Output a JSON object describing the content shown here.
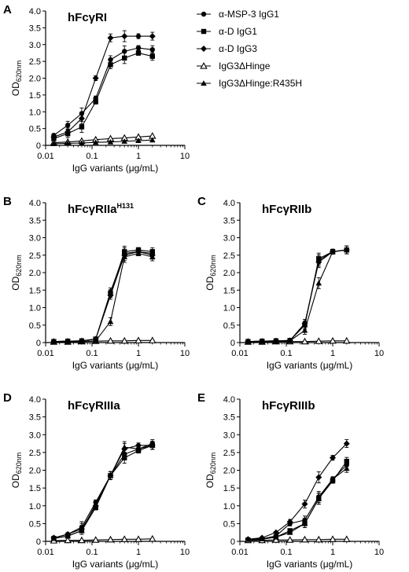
{
  "chart_data": [
    {
      "type": "line",
      "panel_letter": "A",
      "title": "hFcγRI",
      "title_sup": "",
      "xlabel": "IgG variants (μg/mL)",
      "ylabel_main": "OD",
      "ylabel_sub": "620nm",
      "x_scale": "log",
      "xlim": [
        0.01,
        10
      ],
      "ylim": [
        0,
        4.0
      ],
      "x_ticks": [
        "0.01",
        "0.1",
        "1",
        "10"
      ],
      "y_ticks": [
        "0",
        "0.5",
        "1.0",
        "1.5",
        "2.0",
        "2.5",
        "3.0",
        "3.5",
        "4.0"
      ],
      "x": [
        0.015,
        0.03,
        0.06,
        0.12,
        0.25,
        0.5,
        1,
        2
      ],
      "series": [
        {
          "name": "α-MSP-3 IgG1",
          "marker": "circle",
          "values": [
            0.3,
            0.6,
            0.95,
            1.4,
            2.55,
            2.8,
            2.9,
            2.85
          ]
        },
        {
          "name": "α-D IgG1",
          "marker": "square",
          "values": [
            0.2,
            0.35,
            0.55,
            1.3,
            2.4,
            2.6,
            2.75,
            2.65
          ]
        },
        {
          "name": "α-D IgG3",
          "marker": "diamond",
          "values": [
            0.25,
            0.4,
            0.8,
            2.0,
            3.2,
            3.25,
            3.25,
            3.25
          ]
        },
        {
          "name": "IgG3ΔHinge",
          "marker": "triangle-open",
          "values": [
            0.08,
            0.1,
            0.13,
            0.17,
            0.2,
            0.22,
            0.25,
            0.28
          ]
        },
        {
          "name": "IgG3ΔHinge:R435H",
          "marker": "triangle",
          "values": [
            0.05,
            0.06,
            0.07,
            0.09,
            0.1,
            0.12,
            0.14,
            0.16
          ]
        }
      ],
      "legend": "right"
    },
    {
      "type": "line",
      "panel_letter": "B",
      "title": "hFcγRIIa",
      "title_sup": "H131",
      "xlabel": "IgG variants (μg/mL)",
      "ylabel_main": "OD",
      "ylabel_sub": "620nm",
      "x_scale": "log",
      "xlim": [
        0.01,
        10
      ],
      "ylim": [
        0,
        4.0
      ],
      "x_ticks": [
        "0.01",
        "0.1",
        "1",
        "10"
      ],
      "y_ticks": [
        "0",
        "0.5",
        "1.0",
        "1.5",
        "2.0",
        "2.5",
        "3.0",
        "3.5",
        "4.0"
      ],
      "x": [
        0.015,
        0.03,
        0.06,
        0.12,
        0.25,
        0.5,
        1,
        2
      ],
      "series": [
        {
          "name": "α-MSP-3 IgG1",
          "marker": "circle",
          "values": [
            0.03,
            0.04,
            0.05,
            0.1,
            1.45,
            2.55,
            2.6,
            2.55
          ]
        },
        {
          "name": "α-D IgG1",
          "marker": "square",
          "values": [
            0.03,
            0.04,
            0.05,
            0.1,
            1.4,
            2.6,
            2.65,
            2.6
          ]
        },
        {
          "name": "α-D IgG3",
          "marker": "diamond",
          "values": [
            0.03,
            0.04,
            0.05,
            0.1,
            1.35,
            2.5,
            2.6,
            2.5
          ]
        },
        {
          "name": "IgG3ΔHinge",
          "marker": "triangle-open",
          "values": [
            0.02,
            0.02,
            0.03,
            0.04,
            0.05,
            0.05,
            0.06,
            0.06
          ]
        },
        {
          "name": "IgG3ΔHinge:R435H",
          "marker": "triangle",
          "values": [
            0.02,
            0.03,
            0.03,
            0.05,
            0.6,
            2.45,
            2.55,
            2.45
          ]
        }
      ]
    },
    {
      "type": "line",
      "panel_letter": "C",
      "title": "hFcγRIIb",
      "title_sup": "",
      "xlabel": "IgG variants (μg/mL)",
      "ylabel_main": "OD",
      "ylabel_sub": "620nm",
      "x_scale": "log",
      "xlim": [
        0.01,
        10
      ],
      "ylim": [
        0,
        4.0
      ],
      "x_ticks": [
        "0.01",
        "0.1",
        "1",
        "10"
      ],
      "y_ticks": [
        "0",
        "0.5",
        "1.0",
        "1.5",
        "2.0",
        "2.5",
        "3.0",
        "3.5",
        "4.0"
      ],
      "x": [
        0.015,
        0.03,
        0.06,
        0.12,
        0.25,
        0.5,
        1,
        2
      ],
      "series": [
        {
          "name": "α-MSP-3 IgG1",
          "marker": "circle",
          "values": [
            0.03,
            0.04,
            0.05,
            0.06,
            0.5,
            2.35,
            2.6,
            2.65
          ]
        },
        {
          "name": "α-D IgG1",
          "marker": "square",
          "values": [
            0.03,
            0.04,
            0.05,
            0.06,
            0.5,
            2.4,
            2.6,
            2.65
          ]
        },
        {
          "name": "α-D IgG3",
          "marker": "diamond",
          "values": [
            0.03,
            0.04,
            0.05,
            0.06,
            0.55,
            2.3,
            2.6,
            2.65
          ]
        },
        {
          "name": "IgG3ΔHinge",
          "marker": "triangle-open",
          "values": [
            0.02,
            0.02,
            0.03,
            0.03,
            0.03,
            0.04,
            0.05,
            0.05
          ]
        },
        {
          "name": "IgG3ΔHinge:R435H",
          "marker": "triangle",
          "values": [
            0.02,
            0.03,
            0.03,
            0.05,
            0.35,
            1.7,
            2.6,
            2.65
          ]
        }
      ]
    },
    {
      "type": "line",
      "panel_letter": "D",
      "title": "hFcγRIIIa",
      "title_sup": "",
      "xlabel": "IgG variants (μg/mL)",
      "ylabel_main": "OD",
      "ylabel_sub": "620nm",
      "x_scale": "log",
      "xlim": [
        0.01,
        10
      ],
      "ylim": [
        0,
        4.0
      ],
      "x_ticks": [
        "0.01",
        "0.1",
        "1",
        "10"
      ],
      "y_ticks": [
        "0",
        "0.5",
        "1.0",
        "1.5",
        "2.0",
        "2.5",
        "3.0",
        "3.5",
        "4.0"
      ],
      "x": [
        0.015,
        0.03,
        0.06,
        0.12,
        0.25,
        0.5,
        1,
        2
      ],
      "series": [
        {
          "name": "α-MSP-3 IgG1",
          "marker": "circle",
          "values": [
            0.1,
            0.2,
            0.4,
            1.1,
            1.85,
            2.45,
            2.6,
            2.75
          ]
        },
        {
          "name": "α-D IgG1",
          "marker": "square",
          "values": [
            0.08,
            0.15,
            0.3,
            0.95,
            1.85,
            2.35,
            2.55,
            2.7
          ]
        },
        {
          "name": "α-D IgG3",
          "marker": "diamond",
          "values": [
            0.1,
            0.2,
            0.35,
            1.0,
            1.85,
            2.6,
            2.7,
            2.7
          ]
        },
        {
          "name": "IgG3ΔHinge",
          "marker": "triangle-open",
          "values": [
            0.02,
            0.03,
            0.03,
            0.04,
            0.05,
            0.06,
            0.06,
            0.07
          ]
        },
        {
          "name": "IgG3ΔHinge:R435H",
          "marker": "triangle",
          "values": [
            0.08,
            0.15,
            0.3,
            1.05,
            1.85,
            2.65,
            2.6,
            2.7
          ]
        }
      ]
    },
    {
      "type": "line",
      "panel_letter": "E",
      "title": "hFcγRIIIb",
      "title_sup": "",
      "xlabel": "IgG variants (μg/mL)",
      "ylabel_main": "OD",
      "ylabel_sub": "620nm",
      "x_scale": "log",
      "xlim": [
        0.01,
        10
      ],
      "ylim": [
        0,
        4.0
      ],
      "x_ticks": [
        "0.01",
        "0.1",
        "1",
        "10"
      ],
      "y_ticks": [
        "0",
        "0.5",
        "1.0",
        "1.5",
        "2.0",
        "2.5",
        "3.0",
        "3.5",
        "4.0"
      ],
      "x": [
        0.015,
        0.03,
        0.06,
        0.12,
        0.25,
        0.5,
        1,
        2
      ],
      "series": [
        {
          "name": "α-MSP-3 IgG1",
          "marker": "circle",
          "values": [
            0.05,
            0.07,
            0.15,
            0.5,
            0.6,
            1.25,
            1.75,
            2.15
          ]
        },
        {
          "name": "α-D IgG1",
          "marker": "square",
          "values": [
            0.04,
            0.06,
            0.12,
            0.3,
            0.5,
            1.2,
            1.7,
            2.25
          ]
        },
        {
          "name": "α-D IgG3",
          "marker": "diamond",
          "values": [
            0.06,
            0.1,
            0.25,
            0.55,
            1.05,
            1.8,
            2.35,
            2.75
          ]
        },
        {
          "name": "IgG3ΔHinge",
          "marker": "triangle-open",
          "values": [
            0.03,
            0.03,
            0.04,
            0.04,
            0.05,
            0.05,
            0.06,
            0.06
          ]
        },
        {
          "name": "IgG3ΔHinge:R435H",
          "marker": "triangle",
          "values": [
            0.05,
            0.07,
            0.12,
            0.25,
            0.5,
            1.2,
            1.75,
            2.05
          ]
        }
      ]
    }
  ]
}
